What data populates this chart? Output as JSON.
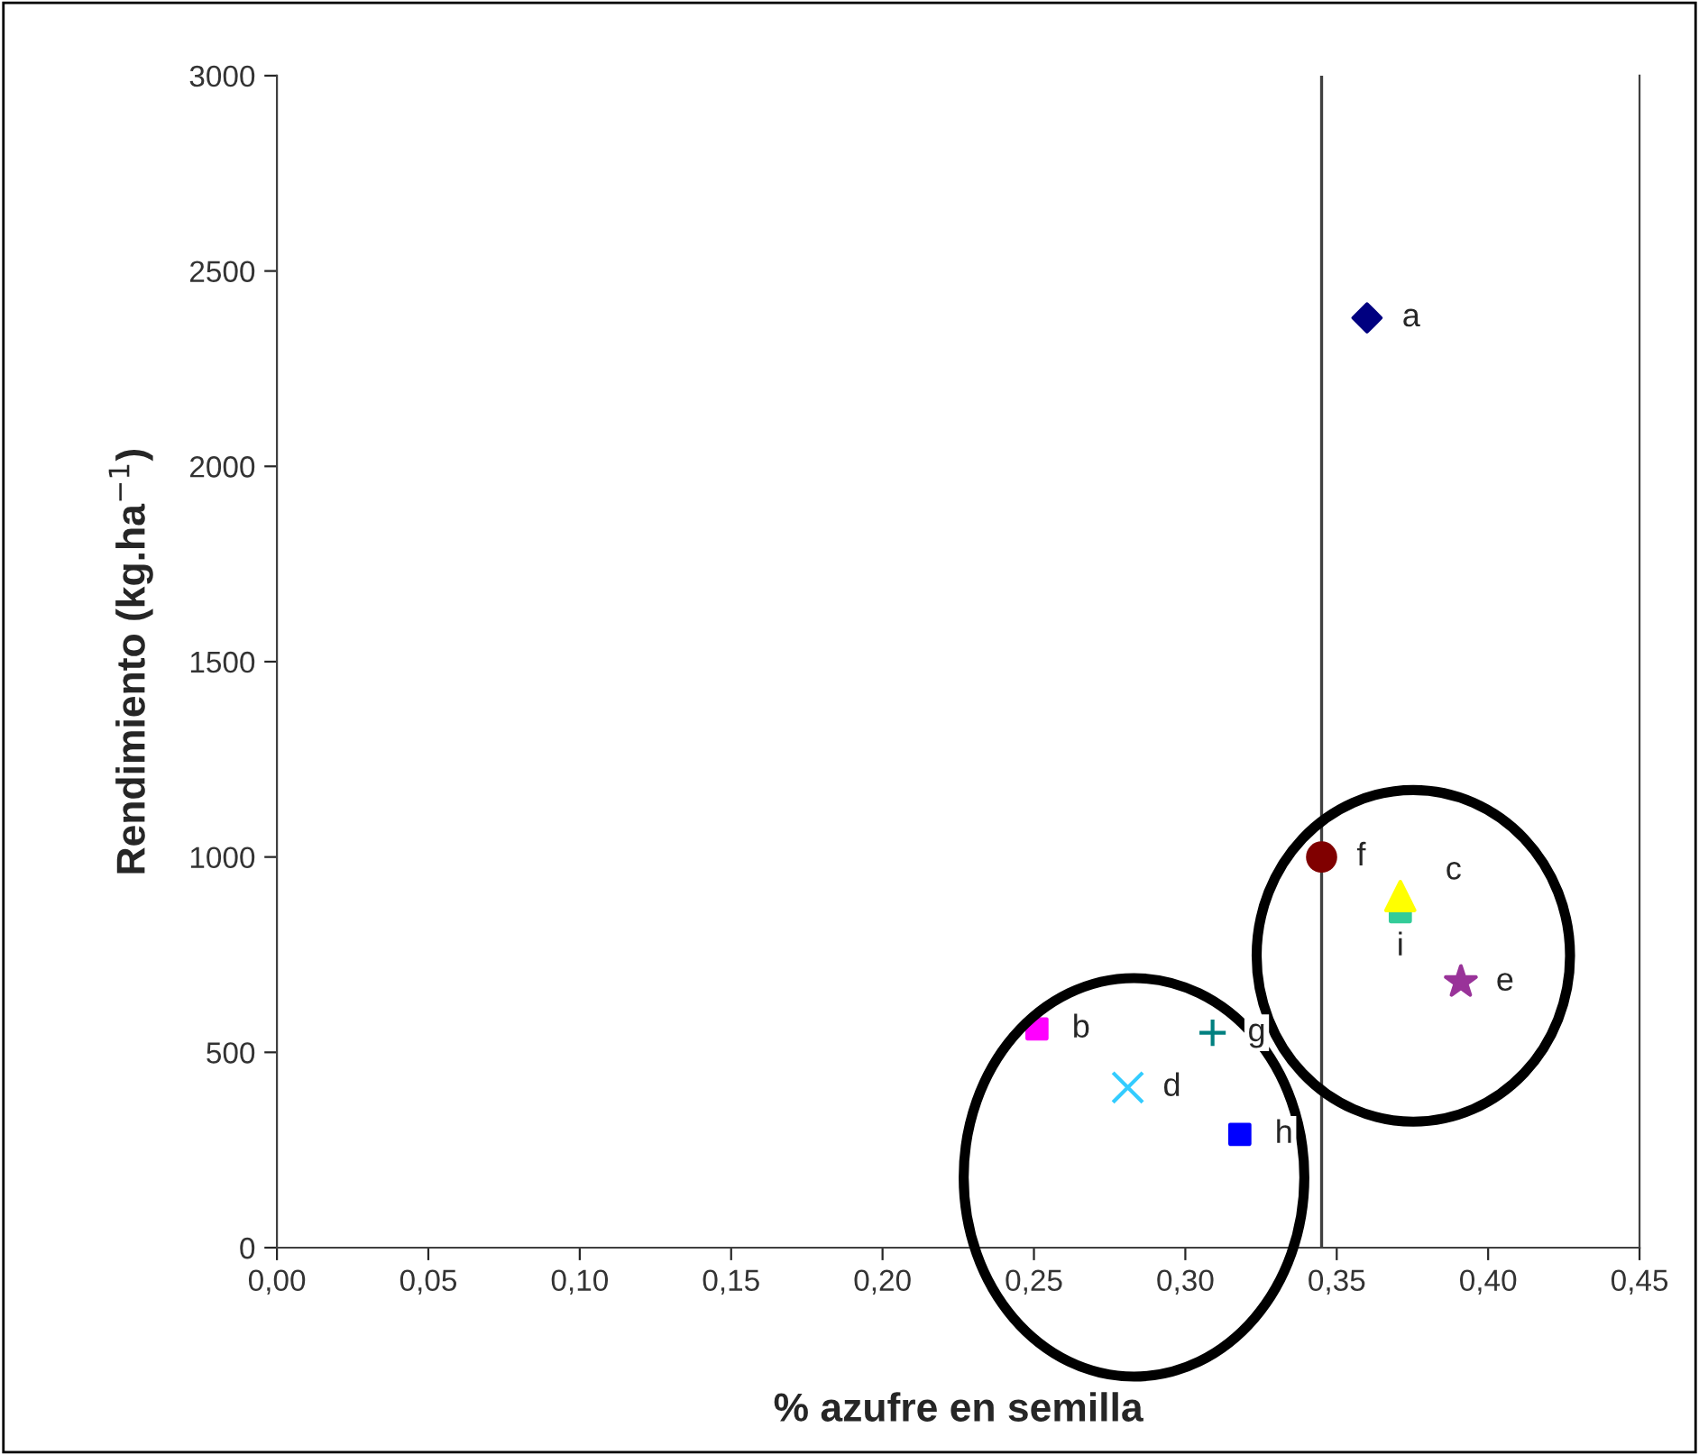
{
  "chart_data": {
    "type": "scatter",
    "xlabel": "% azufre en semilla",
    "ylabel": "Rendimiento (kg.ha$^{−1}$)",
    "series": [
      {
        "name": "a",
        "color": "#000080",
        "marker": "diamond",
        "x": [
          0.36
        ],
        "values": [
          2380
        ]
      },
      {
        "name": "b",
        "color": "#ff00ff",
        "marker": "square",
        "x": [
          0.251
        ],
        "values": [
          560
        ]
      },
      {
        "name": "c",
        "color": "#ffff00",
        "marker": "triangle",
        "x": [
          0.371
        ],
        "values": [
          900
        ]
      },
      {
        "name": "d",
        "color": "#33ccff",
        "marker": "cross",
        "x": [
          0.281
        ],
        "values": [
          410
        ]
      },
      {
        "name": "e",
        "color": "#993399",
        "marker": "star",
        "x": [
          0.391
        ],
        "values": [
          680
        ]
      },
      {
        "name": "f",
        "color": "#800000",
        "marker": "circle",
        "x": [
          0.345
        ],
        "values": [
          1000
        ]
      },
      {
        "name": "g",
        "color": "#008080",
        "marker": "plus",
        "x": [
          0.309
        ],
        "values": [
          550
        ]
      },
      {
        "name": "h",
        "color": "#0000ff",
        "marker": "square",
        "x": [
          0.318
        ],
        "values": [
          290
        ]
      },
      {
        "name": "i",
        "color": "#33cc99",
        "marker": "square",
        "x": [
          0.371
        ],
        "values": [
          860
        ]
      }
    ],
    "xlim": [
      0,
      0.45
    ],
    "ylim": [
      0,
      3000
    ],
    "xticks": [
      {
        "value": 0,
        "label": "0,00"
      },
      {
        "value": 0.05,
        "label": "0,05"
      },
      {
        "value": 0.1,
        "label": "0,10"
      },
      {
        "value": 0.15,
        "label": "0,15"
      },
      {
        "value": 0.2,
        "label": "0,20"
      },
      {
        "value": 0.25,
        "label": "0,25"
      },
      {
        "value": 0.3,
        "label": "0,30"
      },
      {
        "value": 0.35,
        "label": "0,35"
      },
      {
        "value": 0.4,
        "label": "0,40"
      },
      {
        "value": 0.45,
        "label": "0,45"
      }
    ],
    "yticks": [
      0,
      500,
      1000,
      1500,
      2000,
      2500,
      3000
    ],
    "ref_lines": [
      {
        "axis": "x",
        "value": 0.345,
        "color": "#404040"
      }
    ],
    "grid": false
  }
}
